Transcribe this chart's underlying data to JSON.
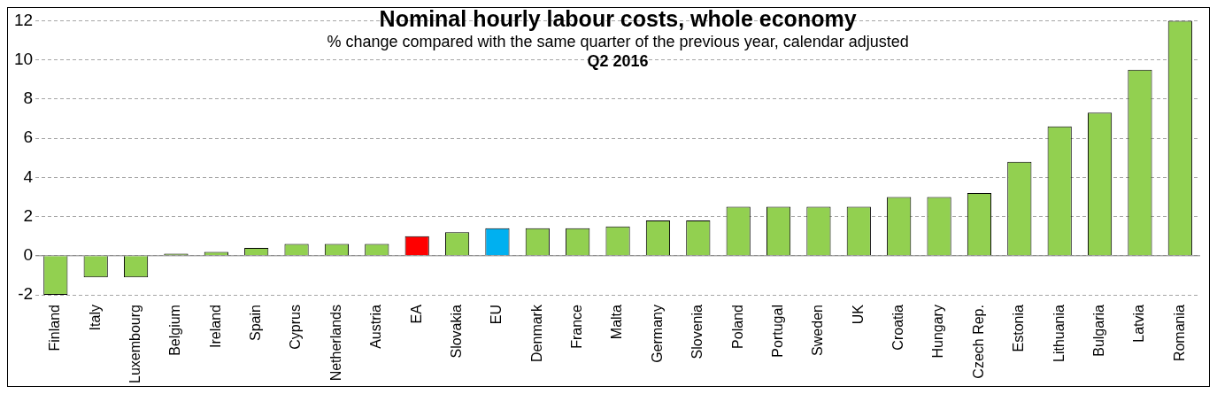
{
  "chart_data": {
    "type": "bar",
    "title": "Nominal hourly labour costs, whole economy",
    "subtitle": "% change compared with the same quarter of the previous year, calendar adjusted",
    "annotations": [
      "Q2 2016"
    ],
    "categories": [
      "Finland",
      "Italy",
      "Luxembourg",
      "Belgium",
      "Ireland",
      "Spain",
      "Cyprus",
      "Netherlands",
      "Austria",
      "EA",
      "Slovakia",
      "EU",
      "Denmark",
      "France",
      "Malta",
      "Germany",
      "Slovenia",
      "Poland",
      "Portugal",
      "Sweden",
      "UK",
      "Croatia",
      "Hungary",
      "Czech Rep.",
      "Estonia",
      "Lithuania",
      "Bulgaria",
      "Latvia",
      "Romania"
    ],
    "values": [
      -2.0,
      -1.1,
      -1.1,
      0.1,
      0.2,
      0.4,
      0.6,
      0.6,
      0.6,
      1.0,
      1.2,
      1.4,
      1.4,
      1.4,
      1.5,
      1.8,
      1.8,
      2.5,
      2.5,
      2.5,
      2.5,
      3.0,
      3.0,
      3.2,
      4.8,
      6.6,
      7.3,
      9.5,
      12.0
    ],
    "colors": [
      "#92d050",
      "#92d050",
      "#92d050",
      "#92d050",
      "#92d050",
      "#92d050",
      "#92d050",
      "#92d050",
      "#92d050",
      "#ff0000",
      "#92d050",
      "#00b0f0",
      "#92d050",
      "#92d050",
      "#92d050",
      "#92d050",
      "#92d050",
      "#92d050",
      "#92d050",
      "#92d050",
      "#92d050",
      "#92d050",
      "#92d050",
      "#92d050",
      "#92d050",
      "#92d050",
      "#92d050",
      "#92d050",
      "#92d050"
    ],
    "ylim": [
      -2,
      12
    ],
    "yticks": [
      -2,
      0,
      2,
      4,
      6,
      8,
      10,
      12
    ],
    "grid": "y",
    "legend": false
  }
}
